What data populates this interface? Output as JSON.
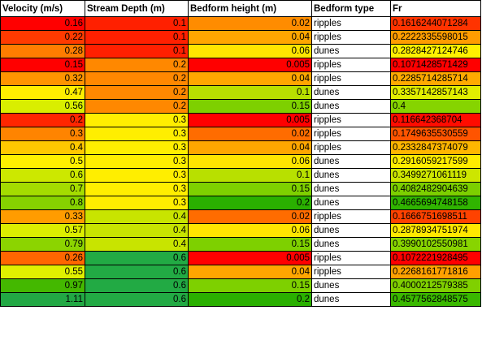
{
  "headers": [
    "Velocity (m/s)",
    "Stream Depth (m)",
    "Bedform height (m)",
    "Bedform type",
    "Fr"
  ],
  "rows": [
    {
      "velocity": "0.16",
      "depth": "0.1",
      "height": "0.02",
      "type": "ripples",
      "fr": "0.1616244071284",
      "colors": [
        "#ff0000",
        "#ff2000",
        "#ff8c00",
        "#ffffff",
        "#ff3300"
      ]
    },
    {
      "velocity": "0.22",
      "depth": "0.1",
      "height": "0.04",
      "type": "ripples",
      "fr": "0.2222335598015",
      "colors": [
        "#ff3a00",
        "#ff2000",
        "#ffa600",
        "#ffffff",
        "#ff9c00"
      ]
    },
    {
      "velocity": "0.28",
      "depth": "0.1",
      "height": "0.06",
      "type": "dunes",
      "fr": "0.2828427124746",
      "colors": [
        "#ff7c00",
        "#ff2000",
        "#ffe500",
        "#ffffff",
        "#fff000"
      ]
    },
    {
      "velocity": "0.15",
      "depth": "0.2",
      "height": "0.005",
      "type": "ripples",
      "fr": "0.1071428571429",
      "colors": [
        "#ff0000",
        "#ff8800",
        "#ff0000",
        "#ffffff",
        "#ff0000"
      ]
    },
    {
      "velocity": "0.32",
      "depth": "0.2",
      "height": "0.04",
      "type": "ripples",
      "fr": "0.2285714285714",
      "colors": [
        "#ff9400",
        "#ff8800",
        "#ffa600",
        "#ffffff",
        "#ffaa00"
      ]
    },
    {
      "velocity": "0.47",
      "depth": "0.2",
      "height": "0.1",
      "type": "dunes",
      "fr": "0.3357142857143",
      "colors": [
        "#ffee00",
        "#ff8800",
        "#b8e000",
        "#ffffff",
        "#e2ee00"
      ]
    },
    {
      "velocity": "0.56",
      "depth": "0.2",
      "height": "0.15",
      "type": "dunes",
      "fr": "0.4",
      "colors": [
        "#d9ee00",
        "#ff8800",
        "#7ed000",
        "#ffffff",
        "#86d400"
      ]
    },
    {
      "velocity": "0.2",
      "depth": "0.3",
      "height": "0.005",
      "type": "ripples",
      "fr": "0.116642368704",
      "colors": [
        "#ff2600",
        "#ffee00",
        "#ff0000",
        "#ffffff",
        "#ff0c00"
      ]
    },
    {
      "velocity": "0.3",
      "depth": "0.3",
      "height": "0.02",
      "type": "ripples",
      "fr": "0.1749635530559",
      "colors": [
        "#ff8400",
        "#ffee00",
        "#ff6c00",
        "#ffffff",
        "#ff5400"
      ]
    },
    {
      "velocity": "0.4",
      "depth": "0.3",
      "height": "0.04",
      "type": "ripples",
      "fr": "0.2332847374079",
      "colors": [
        "#ffc800",
        "#ffee00",
        "#ffa600",
        "#ffffff",
        "#ffb600"
      ]
    },
    {
      "velocity": "0.5",
      "depth": "0.3",
      "height": "0.06",
      "type": "dunes",
      "fr": "0.2916059217599",
      "colors": [
        "#fff000",
        "#ffee00",
        "#ffe500",
        "#ffffff",
        "#ffec00"
      ]
    },
    {
      "velocity": "0.6",
      "depth": "0.3",
      "height": "0.1",
      "type": "dunes",
      "fr": "0.3499271061119",
      "colors": [
        "#cce800",
        "#ffee00",
        "#b8e000",
        "#ffffff",
        "#cde600"
      ]
    },
    {
      "velocity": "0.7",
      "depth": "0.3",
      "height": "0.15",
      "type": "dunes",
      "fr": "0.4082482904639",
      "colors": [
        "#a4dc00",
        "#ffee00",
        "#7ed000",
        "#ffffff",
        "#7ccf00"
      ]
    },
    {
      "velocity": "0.8",
      "depth": "0.3",
      "height": "0.2",
      "type": "dunes",
      "fr": "0.4665694748158",
      "colors": [
        "#86d200",
        "#ffee00",
        "#2ab000",
        "#ffffff",
        "#30b400"
      ]
    },
    {
      "velocity": "0.33",
      "depth": "0.4",
      "height": "0.02",
      "type": "ripples",
      "fr": "0.1666751698511",
      "colors": [
        "#ff9c00",
        "#c8e400",
        "#ff6c00",
        "#ffffff",
        "#ff4200"
      ]
    },
    {
      "velocity": "0.57",
      "depth": "0.4",
      "height": "0.06",
      "type": "dunes",
      "fr": "0.2878934751974",
      "colors": [
        "#dcee00",
        "#c8e400",
        "#ffe500",
        "#ffffff",
        "#ffe800"
      ]
    },
    {
      "velocity": "0.79",
      "depth": "0.4",
      "height": "0.15",
      "type": "dunes",
      "fr": "0.3990102550981",
      "colors": [
        "#8cd400",
        "#c8e400",
        "#7ed000",
        "#ffffff",
        "#88d400"
      ]
    },
    {
      "velocity": "0.26",
      "depth": "0.6",
      "height": "0.005",
      "type": "ripples",
      "fr": "0.1072221928495",
      "colors": [
        "#ff6600",
        "#22aa44",
        "#ff0000",
        "#ffffff",
        "#ff0000"
      ]
    },
    {
      "velocity": "0.55",
      "depth": "0.6",
      "height": "0.04",
      "type": "ripples",
      "fr": "0.2268161771816",
      "colors": [
        "#e0f000",
        "#22aa44",
        "#ffa600",
        "#ffffff",
        "#ffa000"
      ]
    },
    {
      "velocity": "0.97",
      "depth": "0.6",
      "height": "0.15",
      "type": "dunes",
      "fr": "0.4000212579385",
      "colors": [
        "#44b800",
        "#22aa44",
        "#7ed000",
        "#ffffff",
        "#80d000"
      ]
    },
    {
      "velocity": "1.11",
      "depth": "0.6",
      "height": "0.2",
      "type": "dunes",
      "fr": "0.4577562848575",
      "colors": [
        "#22a844",
        "#22aa44",
        "#2ab000",
        "#ffffff",
        "#3ab800"
      ]
    }
  ]
}
